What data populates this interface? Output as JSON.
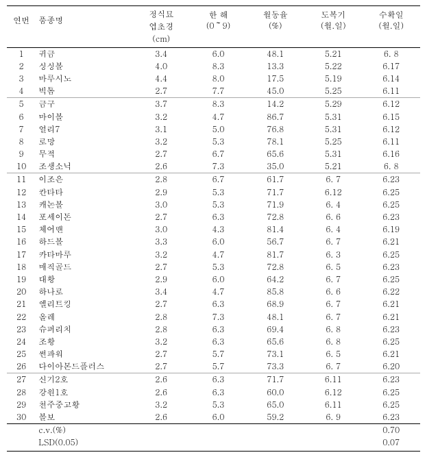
{
  "header": {
    "col0": {
      "l1": "연번",
      "l2": ""
    },
    "col1": {
      "l1": "품종명",
      "l2": ""
    },
    "col2": {
      "l1": "정식묘",
      "l2": "엽초경",
      "l3": "(cm)"
    },
    "col3": {
      "l1": "한 해",
      "l2": "(0～9)"
    },
    "col4": {
      "l1": "월동율",
      "l2": "(%)"
    },
    "col5": {
      "l1": "도복기",
      "l2": "(월.일)"
    },
    "col6": {
      "l1": "수확일",
      "l2": "(월.일)"
    }
  },
  "rows": [
    {
      "n": "1",
      "name": "귀금",
      "a": "3.4",
      "b": "6.0",
      "c": "48.1",
      "d": "5.21",
      "e": "6.  8"
    },
    {
      "n": "2",
      "name": "싱싱볼",
      "a": "4.0",
      "b": "8.3",
      "c": "13.3",
      "d": "5.22",
      "e": "6.17"
    },
    {
      "n": "3",
      "name": "마루시노",
      "a": "4.4",
      "b": "8.0",
      "c": "17.5",
      "d": "5.19",
      "e": "6.14"
    },
    {
      "n": "4",
      "name": "빅톰",
      "a": "2.7",
      "b": "7.7",
      "c": "45.0",
      "d": "5.25",
      "e": "6.11"
    },
    {
      "n": "5",
      "name": "금구",
      "a": "3.7",
      "b": "8.3",
      "c": "14.2",
      "d": "5.29",
      "e": "6.12"
    },
    {
      "n": "6",
      "name": "마이볼",
      "a": "3.2",
      "b": "4.7",
      "c": "86.7",
      "d": "5.31",
      "e": "6.15"
    },
    {
      "n": "7",
      "name": "얼리7",
      "a": "3.1",
      "b": "5.0",
      "c": "76.8",
      "d": "5.31",
      "e": "6.12"
    },
    {
      "n": "8",
      "name": "로망",
      "a": "3.2",
      "b": "5.3",
      "c": "78.1",
      "d": "5.25",
      "e": "6.11"
    },
    {
      "n": "9",
      "name": "무적",
      "a": "2.7",
      "b": "6.7",
      "c": "65.6",
      "d": "5.31",
      "e": "6.16"
    },
    {
      "n": "10",
      "name": "조생소닉",
      "a": "2.6",
      "b": "7.3",
      "c": "35.0",
      "d": "5.21",
      "e": "6.  8"
    },
    {
      "n": "11",
      "name": "이조은",
      "a": "2.8",
      "b": "6.7",
      "c": "61.7",
      "d": "6.  7",
      "e": "6.23"
    },
    {
      "n": "12",
      "name": "칸타타",
      "a": "2.9",
      "b": "5.3",
      "c": "71.7",
      "d": "6.12",
      "e": "6.25"
    },
    {
      "n": "13",
      "name": "캐논볼",
      "a": "3.0",
      "b": "5.3",
      "c": "71.9",
      "d": "6.  4",
      "e": "6.25"
    },
    {
      "n": "14",
      "name": "포세이돈",
      "a": "2.7",
      "b": "6.3",
      "c": "72.8",
      "d": "6.  6",
      "e": "6.23"
    },
    {
      "n": "15",
      "name": "체어맨",
      "a": "3.0",
      "b": "4.3",
      "c": "81.4",
      "d": "6.  4",
      "e": "6.19"
    },
    {
      "n": "16",
      "name": "하드볼",
      "a": "3.3",
      "b": "6.0",
      "c": "56.7",
      "d": "6.  7",
      "e": "6.21"
    },
    {
      "n": "17",
      "name": "카타마루",
      "a": "3.2",
      "b": "4.7",
      "c": "81.7",
      "d": "6.  3",
      "e": "6.25"
    },
    {
      "n": "18",
      "name": "매직골드",
      "a": "2.7",
      "b": "5.3",
      "c": "72.8",
      "d": "6.  5",
      "e": "6.23"
    },
    {
      "n": "19",
      "name": "대황",
      "a": "2.9",
      "b": "6.0",
      "c": "64.2",
      "d": "6.  7",
      "e": "6.25"
    },
    {
      "n": "20",
      "name": "하나로",
      "a": "3.4",
      "b": "4.7",
      "c": "85.8",
      "d": "6.  6",
      "e": "6.22"
    },
    {
      "n": "21",
      "name": "엘리트킹",
      "a": "2.7",
      "b": "6.3",
      "c": "68.9",
      "d": "6.  7",
      "e": "6.21"
    },
    {
      "n": "22",
      "name": "올레",
      "a": "2.8",
      "b": "7.3",
      "c": "48.1",
      "d": "6.  7",
      "e": "6.21"
    },
    {
      "n": "23",
      "name": "슈퍼리치",
      "a": "2.8",
      "b": "6.3",
      "c": "69.4",
      "d": "6.  8",
      "e": "6.23"
    },
    {
      "n": "24",
      "name": "조황",
      "a": "3.2",
      "b": "6.3",
      "c": "65.6",
      "d": "6.  8",
      "e": "6.25"
    },
    {
      "n": "25",
      "name": "썬파워",
      "a": "2.7",
      "b": "5.7",
      "c": "73.1",
      "d": "6.  5",
      "e": "6.21"
    },
    {
      "n": "26",
      "name": "다이아몬드플러스",
      "a": "2.7",
      "b": "5.7",
      "c": "73.3",
      "d": "6.  7",
      "e": "6.20"
    },
    {
      "n": "27",
      "name": "신기2호",
      "a": "2.6",
      "b": "6.3",
      "c": "71.7",
      "d": "6.11",
      "e": "6.23"
    },
    {
      "n": "28",
      "name": "강원1호",
      "a": "2.6",
      "b": "6.3",
      "c": "60.0",
      "d": "6.12",
      "e": "6.25"
    },
    {
      "n": "29",
      "name": "천주중고황",
      "a": "3.2",
      "b": "5.3",
      "c": "65.0",
      "d": "6.11",
      "e": "6.25"
    },
    {
      "n": "30",
      "name": "볼보",
      "a": "2.6",
      "b": "6.0",
      "c": "59.2",
      "d": "6.  9",
      "e": "6.23"
    }
  ],
  "groupBreaks": [
    4,
    10,
    26
  ],
  "footer": {
    "cv": {
      "label": "c.v.(%)",
      "e": "0.70"
    },
    "lsd": {
      "label": "LSD(0.05)",
      "e": "0.07"
    }
  }
}
